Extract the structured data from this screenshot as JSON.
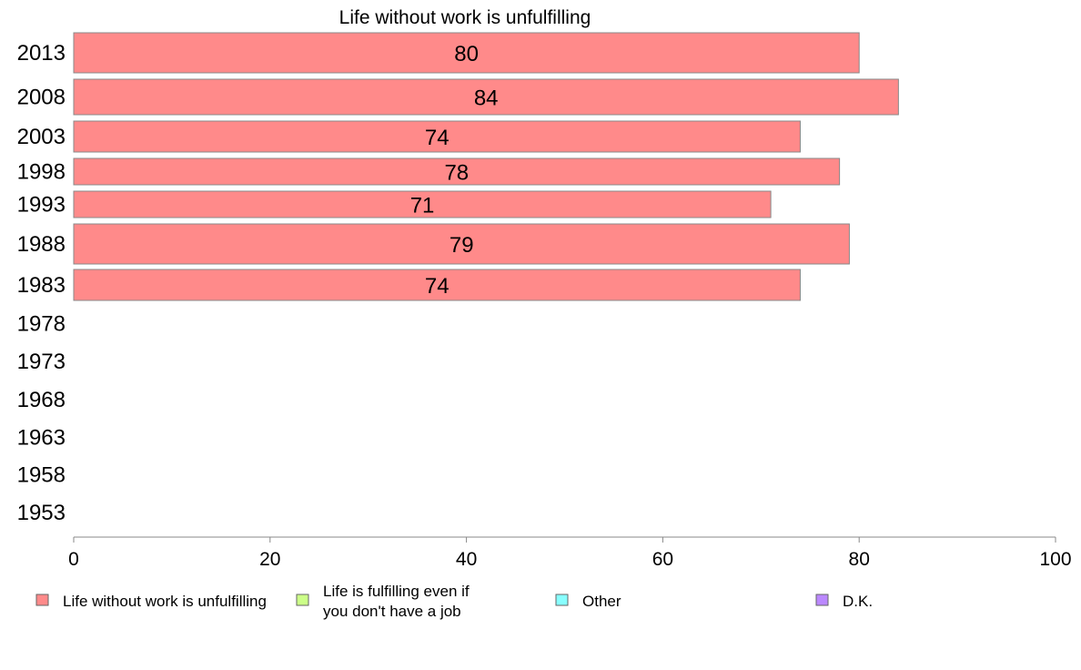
{
  "chart_data": {
    "type": "bar",
    "orientation": "horizontal",
    "title": "Life without work is unfulfilling",
    "categories": [
      "2013",
      "2008",
      "2003",
      "1998",
      "1993",
      "1988",
      "1983",
      "1978",
      "1973",
      "1968",
      "1963",
      "1958",
      "1953"
    ],
    "series": [
      {
        "name": "Life without work is unfulfilling",
        "color": "#ff8a8a",
        "values": [
          80,
          84,
          74,
          78,
          71,
          79,
          74,
          null,
          null,
          null,
          null,
          null,
          null
        ]
      }
    ],
    "xlim": [
      0,
      100
    ],
    "xticks": [
      0,
      20,
      40,
      60,
      80,
      100
    ],
    "grid": false,
    "legend_position": "bottom",
    "legend": [
      {
        "label": "Life without work is unfulfilling",
        "color": "#ff8a8a"
      },
      {
        "label": "Life is fulfilling even if you don't have a job",
        "lines": [
          "Life is fulfilling even if",
          "you don't have a job"
        ],
        "color": "#ccff88"
      },
      {
        "label": "Other",
        "color": "#88ffff"
      },
      {
        "label": "D.K.",
        "color": "#bb88ff"
      }
    ]
  }
}
